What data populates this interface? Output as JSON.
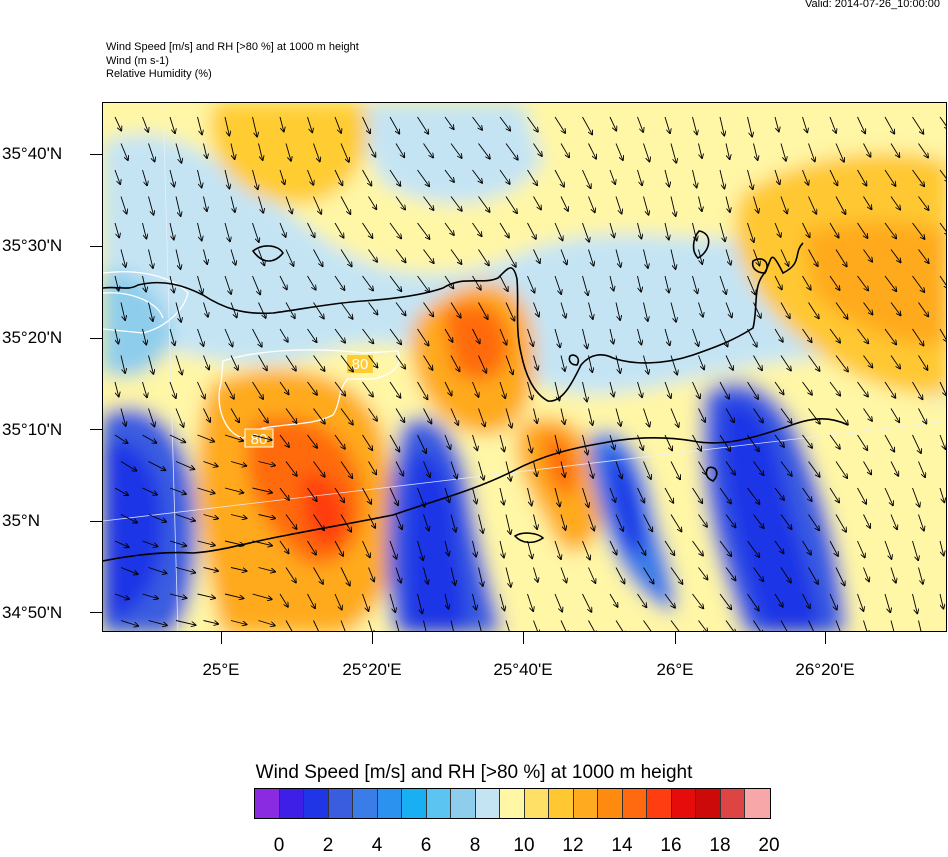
{
  "valid_time": "Valid: 2014-07-26_10:00:00",
  "header": {
    "line1": "Wind Speed [m/s] and RH [>80 %] at 1000 m height",
    "line2": "Wind   (m s-1)",
    "line3": "Relative Humidity   (%)"
  },
  "axes": {
    "lat_labels": [
      "35°40'N",
      "35°30'N",
      "35°20'N",
      "35°10'N",
      "35°N",
      "34°50'N"
    ],
    "lon_labels": [
      "25°E",
      "25°20'E",
      "25°40'E",
      "26°E",
      "26°20'E"
    ]
  },
  "contour_labels": [
    "80",
    "80"
  ],
  "colorbar": {
    "title": "Wind Speed [m/s] and RH [>80 %] at 1000 m height",
    "tick_labels": [
      "0",
      "2",
      "4",
      "6",
      "8",
      "10",
      "12",
      "14",
      "16",
      "18",
      "20"
    ],
    "colors": [
      "#8a2be2",
      "#3d1fe8",
      "#1f35e6",
      "#3a5de0",
      "#3b7de8",
      "#2b92f0",
      "#18b0f2",
      "#5cc4f0",
      "#8fcdec",
      "#c4e4f4",
      "#fff6a6",
      "#ffe066",
      "#ffc833",
      "#ffaa1f",
      "#ff8a10",
      "#ff6a10",
      "#ff3d10",
      "#e60c0c",
      "#cc0a0a",
      "#dd4444",
      "#f7a7a7"
    ]
  },
  "legend_colors": {
    "calm": "#1f35e6",
    "moderate": "#c4e4f4",
    "strong": "#ff6a10",
    "coast": "#000000",
    "rh_contour": "#ffffff"
  }
}
